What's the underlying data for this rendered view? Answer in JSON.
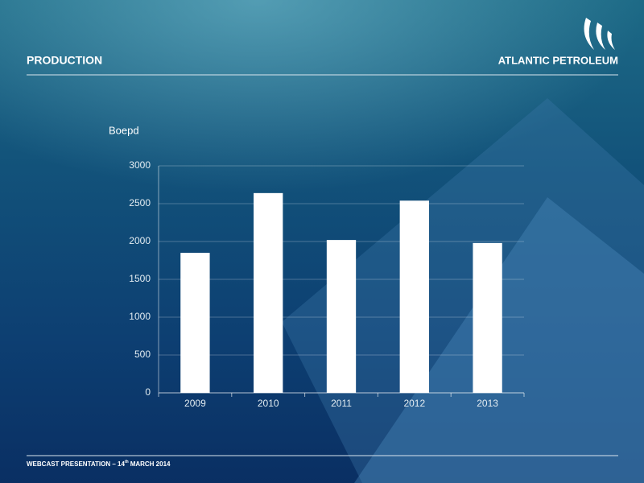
{
  "header": {
    "title": "PRODUCTION",
    "logo": "ATLANTIC PETROLEUM"
  },
  "footer": {
    "parts": [
      "WEBCAST PRESENTATION – 14",
      "th",
      "MARCH 2014"
    ]
  },
  "chart_data": {
    "type": "bar",
    "y_label": "Boepd",
    "categories": [
      "2009",
      "2010",
      "2011",
      "2012",
      "2013"
    ],
    "values": [
      1850,
      2640,
      2020,
      2540,
      1980
    ],
    "color": "#ffffff",
    "ylim": [
      0,
      3000
    ],
    "yticks": [
      0,
      500,
      1000,
      1500,
      2000,
      2500,
      3000
    ],
    "grid": true
  }
}
